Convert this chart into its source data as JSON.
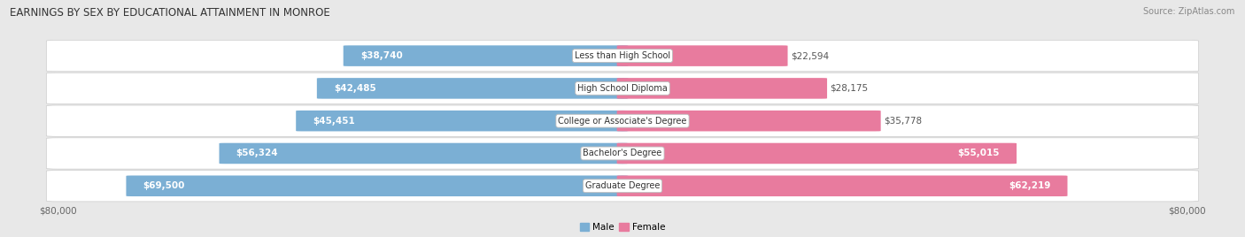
{
  "title": "EARNINGS BY SEX BY EDUCATIONAL ATTAINMENT IN MONROE",
  "source": "Source: ZipAtlas.com",
  "categories": [
    "Less than High School",
    "High School Diploma",
    "College or Associate's Degree",
    "Bachelor's Degree",
    "Graduate Degree"
  ],
  "male_values": [
    38740,
    42485,
    45451,
    56324,
    69500
  ],
  "female_values": [
    22594,
    28175,
    35778,
    55015,
    62219
  ],
  "max_value": 80000,
  "male_color": "#7bafd4",
  "female_color": "#e87b9e",
  "male_label": "Male",
  "female_label": "Female",
  "bar_height": 0.62,
  "background_color": "#e8e8e8",
  "row_bg_light": "#f5f5f5",
  "row_bg_dark": "#e8e8e8",
  "title_fontsize": 8.5,
  "source_fontsize": 7,
  "label_fontsize": 7.5,
  "axis_label_fontsize": 7.5,
  "category_fontsize": 7,
  "inside_label_threshold": 0.45
}
